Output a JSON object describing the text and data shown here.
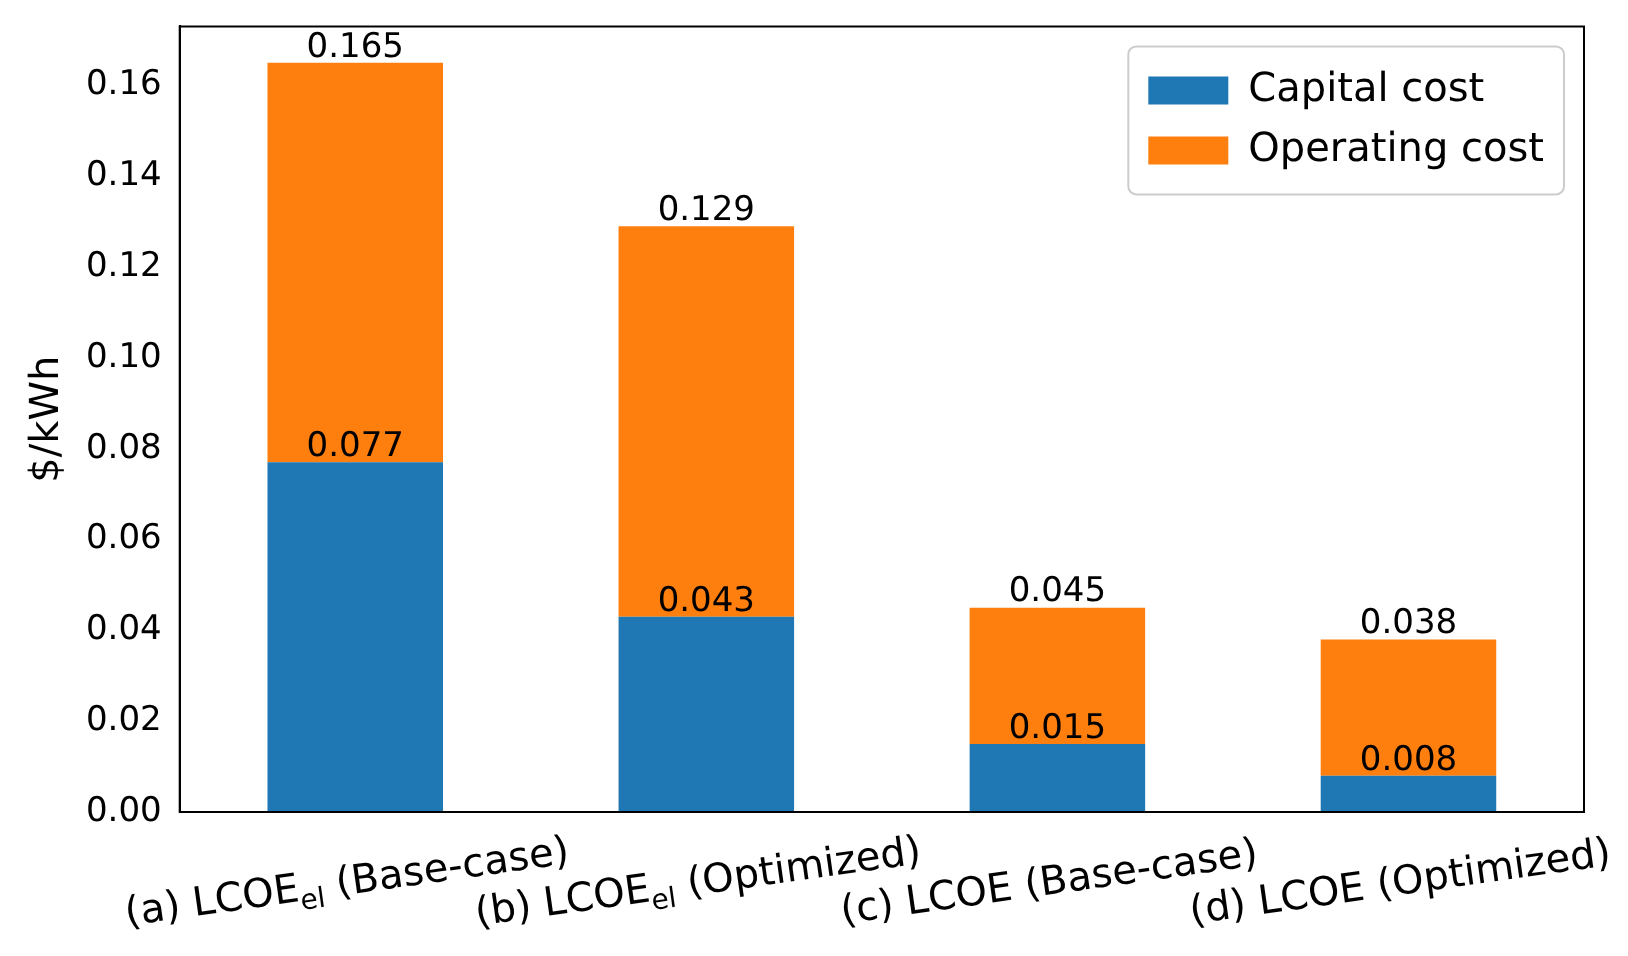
{
  "chart_data": {
    "type": "bar",
    "stacked": true,
    "ylabel": "$/kWh",
    "categories": [
      "(a) LCOE$_{el}$ (Base-case)",
      "(b) LCOE$_{el}$ (Optimized)",
      "(c) LCOE (Base-case)",
      "(d) LCOE (Optimized)"
    ],
    "series": [
      {
        "name": "Capital cost",
        "color": "#1f77b4",
        "values": [
          0.077,
          0.043,
          0.015,
          0.008
        ],
        "value_labels": [
          "0.077",
          "0.043",
          "0.015",
          "0.008"
        ]
      },
      {
        "name": "Operating cost",
        "color": "#ff7f0e",
        "values": [
          0.088,
          0.086,
          0.03,
          0.03
        ]
      }
    ],
    "totals": [
      "0.165",
      "0.129",
      "0.045",
      "0.038"
    ],
    "ylim": [
      0,
      0.173
    ],
    "yticks": [
      {
        "value": 0,
        "label": "0.00"
      },
      {
        "value": 0.02,
        "label": "0.02"
      },
      {
        "value": 0.04,
        "label": "0.04"
      },
      {
        "value": 0.06,
        "label": "0.06"
      },
      {
        "value": 0.08,
        "label": "0.08"
      },
      {
        "value": 0.1,
        "label": "0.10"
      },
      {
        "value": 0.12,
        "label": "0.12"
      },
      {
        "value": 0.14,
        "label": "0.14"
      },
      {
        "value": 0.16,
        "label": "0.16"
      }
    ],
    "grid": false,
    "legend": "top right"
  }
}
